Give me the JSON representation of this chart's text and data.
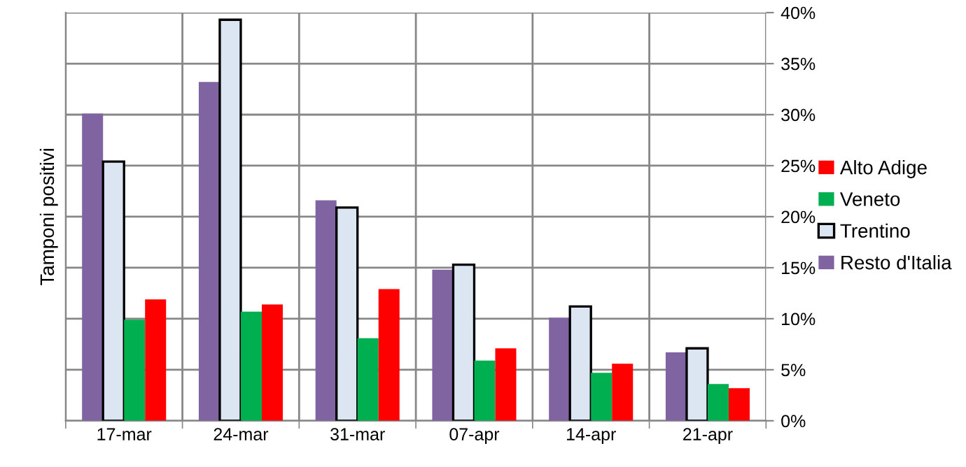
{
  "chart_data": {
    "type": "bar",
    "ylabel": "Tamponi positivi",
    "categories": [
      "17-mar",
      "24-mar",
      "31-mar",
      "07-apr",
      "14-apr",
      "21-apr"
    ],
    "series": [
      {
        "name": "Resto d'Italia",
        "color": "#8064a2",
        "values": [
          30.1,
          33.2,
          21.6,
          14.8,
          10.1,
          6.7
        ]
      },
      {
        "name": "Trentino",
        "color": "#dce6f2",
        "values": [
          25.4,
          39.3,
          20.9,
          15.3,
          11.2,
          7.1
        ]
      },
      {
        "name": "Veneto",
        "color": "#00b050",
        "values": [
          9.9,
          10.7,
          8.1,
          5.9,
          4.7,
          3.6
        ]
      },
      {
        "name": "Alto Adige",
        "color": "#ff0000",
        "values": [
          11.9,
          11.4,
          12.9,
          7.1,
          5.6,
          3.2
        ]
      }
    ],
    "ylim": [
      0,
      40
    ],
    "yticks": [
      {
        "value": 0,
        "label": "0%"
      },
      {
        "value": 5,
        "label": "5%"
      },
      {
        "value": 10,
        "label": "10%"
      },
      {
        "value": 15,
        "label": "15%"
      },
      {
        "value": 20,
        "label": "20%"
      },
      {
        "value": 25,
        "label": "25%"
      },
      {
        "value": 30,
        "label": "30%"
      },
      {
        "value": 35,
        "label": "35%"
      },
      {
        "value": 40,
        "label": "40%"
      }
    ],
    "grid": true,
    "legend": "right"
  }
}
